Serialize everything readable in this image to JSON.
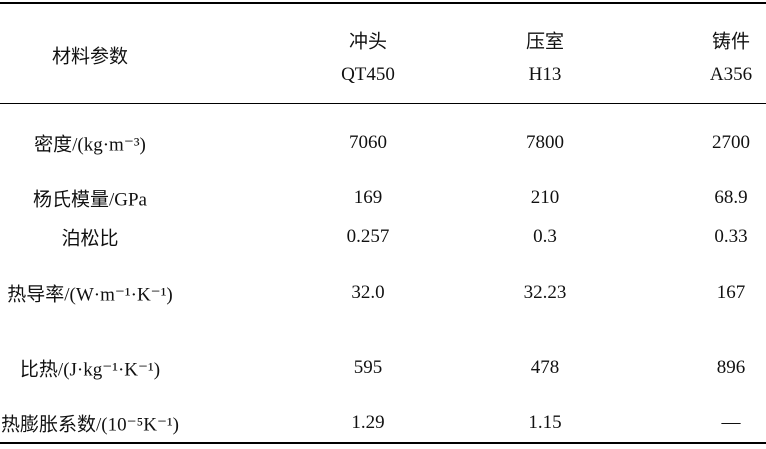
{
  "table": {
    "header": {
      "label": "材料参数",
      "columns": [
        {
          "name": "冲头",
          "grade": "QT450"
        },
        {
          "name": "压室",
          "grade": "H13"
        },
        {
          "name": "铸件",
          "grade": "A356"
        }
      ]
    },
    "rows": [
      [
        "密度/(kg·m⁻³)",
        "7060",
        "7800",
        "2700"
      ],
      [
        "杨氏模量/GPa",
        "169",
        "210",
        "68.9"
      ],
      [
        "泊松比",
        "0.257",
        "0.3",
        "0.33"
      ],
      [
        "热导率/(W·m⁻¹·K⁻¹)",
        "32.0",
        "32.23",
        "167"
      ],
      [
        "比热/(J·kg⁻¹·K⁻¹)",
        "595",
        "478",
        "896"
      ],
      [
        "热膨胀系数/(10⁻⁵K⁻¹)",
        "1.29",
        "1.15",
        "—"
      ]
    ]
  }
}
